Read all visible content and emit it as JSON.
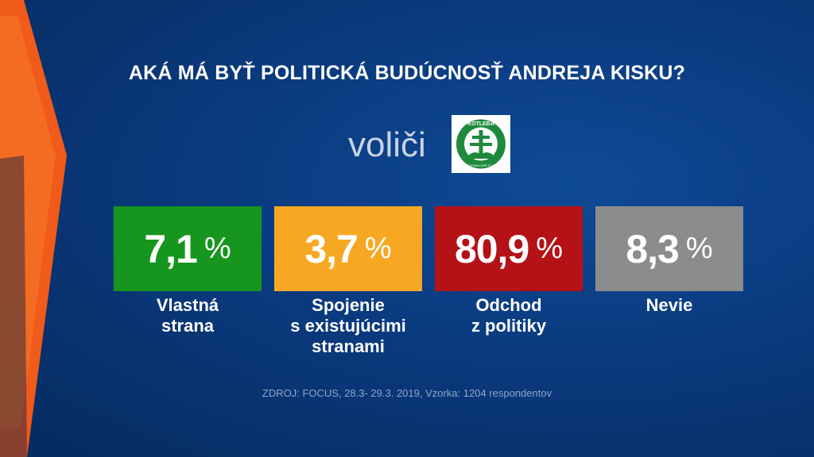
{
  "title": "AKÁ MÁ BYŤ POLITICKÁ BUDÚCNOSŤ ANDREJA KISKU?",
  "voters_label": "voliči",
  "logo": {
    "icon": "kotleba-party-logo",
    "text_top": "KOTLEBA",
    "text_bottom": "ĽUDOVÁ STRANA NAŠE SLOVENSKO",
    "color": "#1e8a3c"
  },
  "chart_data": {
    "type": "bar",
    "unit": "%",
    "categories": [
      "Vlastná strana",
      "Spojenie s existujúcimi stranami",
      "Odchod z politiky",
      "Nevie"
    ],
    "series": [
      {
        "values": [
          7.1,
          3.7,
          80.9,
          8.3
        ]
      }
    ],
    "items": [
      {
        "value_label": "7,1",
        "caption_lines": [
          "Vlastná",
          "strana"
        ],
        "color": "#16961e"
      },
      {
        "value_label": "3,7",
        "caption_lines": [
          "Spojenie",
          "s existujúcimi",
          "stranami"
        ],
        "color": "#f7a823"
      },
      {
        "value_label": "80,9",
        "caption_lines": [
          "Odchod",
          "z politiky"
        ],
        "color": "#b41217"
      },
      {
        "value_label": "8,3",
        "caption_lines": [
          "Nevie"
        ],
        "color": "#8a8c8e"
      }
    ],
    "percent_sign": "%"
  },
  "source": "ZDROJ: FOCUS, 28.3- 29.3. 2019, Vzorka: 1204 respondentov"
}
